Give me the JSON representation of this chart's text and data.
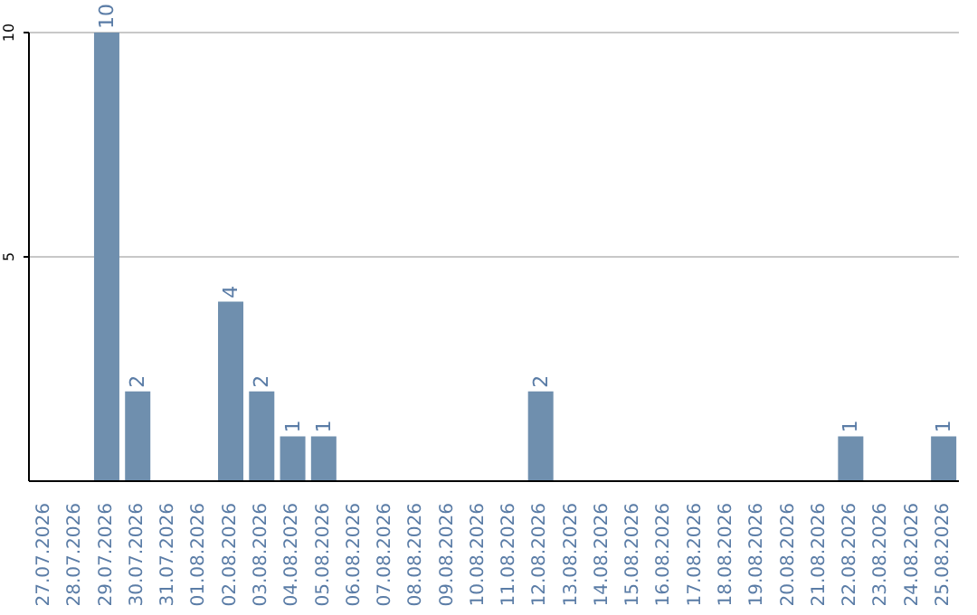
{
  "chart_data": {
    "type": "bar",
    "categories": [
      "27.07.2026",
      "28.07.2026",
      "29.07.2026",
      "30.07.2026",
      "31.07.2026",
      "01.08.2026",
      "02.08.2026",
      "03.08.2026",
      "04.08.2026",
      "05.08.2026",
      "06.08.2026",
      "07.08.2026",
      "08.08.2026",
      "09.08.2026",
      "10.08.2026",
      "11.08.2026",
      "12.08.2026",
      "13.08.2026",
      "14.08.2026",
      "15.08.2026",
      "16.08.2026",
      "17.08.2026",
      "18.08.2026",
      "19.08.2026",
      "20.08.2026",
      "21.08.2026",
      "22.08.2026",
      "23.08.2026",
      "24.08.2026",
      "25.08.2026"
    ],
    "values": [
      0,
      0,
      10,
      2,
      0,
      0,
      4,
      2,
      1,
      1,
      0,
      0,
      0,
      0,
      0,
      0,
      2,
      0,
      0,
      0,
      0,
      0,
      0,
      0,
      0,
      0,
      1,
      0,
      0,
      1
    ],
    "value_labels": [
      null,
      null,
      "10",
      "2",
      null,
      null,
      "4",
      "2",
      "1",
      "1",
      null,
      null,
      null,
      null,
      null,
      null,
      "2",
      null,
      null,
      null,
      null,
      null,
      null,
      null,
      null,
      null,
      "1",
      null,
      null,
      "1"
    ],
    "color": "#6f8fae",
    "ylim": [
      0,
      10
    ],
    "yticks": [
      5,
      10
    ],
    "grid": "y"
  }
}
